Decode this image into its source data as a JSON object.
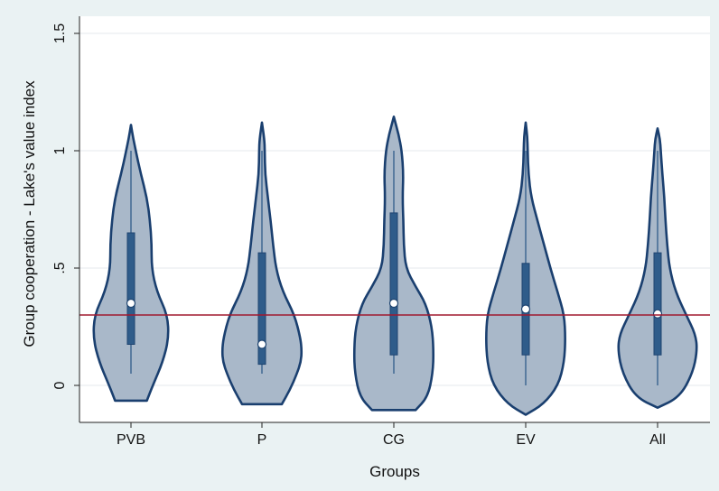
{
  "chart_data": {
    "type": "violin",
    "xlabel": "Groups",
    "ylabel": "Group cooperation - Lake's value index",
    "ylim": [
      -0.15,
      1.5
    ],
    "yticks": [
      {
        "v": 0,
        "label": "0"
      },
      {
        "v": 0.5,
        "label": ".5"
      },
      {
        "v": 1,
        "label": "1"
      },
      {
        "v": 1.5,
        "label": "1.5"
      }
    ],
    "reference_line": 0.3,
    "grid": true,
    "colors": {
      "fill": "#a9b8c9",
      "outline": "#1a3f6f",
      "box": "#2f5c8a",
      "refline": "#a0182f",
      "grid": "#e6eaee",
      "background": "#eaf2f3",
      "plot_bg": "#ffffff"
    },
    "categories": [
      {
        "label": "PVB",
        "min": 0.05,
        "q1": 0.175,
        "median": 0.35,
        "q3": 0.65,
        "max": 1.0,
        "violin_low": -0.065,
        "violin_high": 1.11,
        "profile": [
          [
            -0.065,
            0.4
          ],
          [
            0.0,
            0.55
          ],
          [
            0.1,
            0.8
          ],
          [
            0.2,
            0.95
          ],
          [
            0.3,
            0.92
          ],
          [
            0.4,
            0.65
          ],
          [
            0.5,
            0.52
          ],
          [
            0.6,
            0.52
          ],
          [
            0.7,
            0.48
          ],
          [
            0.8,
            0.4
          ],
          [
            0.9,
            0.25
          ],
          [
            1.0,
            0.12
          ],
          [
            1.05,
            0.06
          ],
          [
            1.11,
            0.0
          ]
        ]
      },
      {
        "label": "P",
        "min": 0.05,
        "q1": 0.09,
        "median": 0.175,
        "q3": 0.565,
        "max": 1.0,
        "violin_low": -0.08,
        "violin_high": 1.12,
        "profile": [
          [
            -0.08,
            0.5
          ],
          [
            -0.02,
            0.7
          ],
          [
            0.05,
            0.88
          ],
          [
            0.1,
            0.98
          ],
          [
            0.15,
            1.0
          ],
          [
            0.2,
            0.97
          ],
          [
            0.3,
            0.82
          ],
          [
            0.4,
            0.52
          ],
          [
            0.5,
            0.35
          ],
          [
            0.6,
            0.28
          ],
          [
            0.7,
            0.22
          ],
          [
            0.8,
            0.15
          ],
          [
            0.9,
            0.08
          ],
          [
            1.0,
            0.07
          ],
          [
            1.05,
            0.06
          ],
          [
            1.12,
            0.0
          ]
        ]
      },
      {
        "label": "CG",
        "min": 0.05,
        "q1": 0.13,
        "median": 0.35,
        "q3": 0.735,
        "max": 1.0,
        "violin_low": -0.105,
        "violin_high": 1.145,
        "profile": [
          [
            -0.105,
            0.55
          ],
          [
            -0.05,
            0.85
          ],
          [
            0.05,
            0.98
          ],
          [
            0.15,
            1.0
          ],
          [
            0.25,
            0.96
          ],
          [
            0.35,
            0.8
          ],
          [
            0.42,
            0.55
          ],
          [
            0.5,
            0.3
          ],
          [
            0.6,
            0.25
          ],
          [
            0.7,
            0.24
          ],
          [
            0.8,
            0.22
          ],
          [
            0.9,
            0.24
          ],
          [
            1.0,
            0.2
          ],
          [
            1.07,
            0.12
          ],
          [
            1.145,
            0.0
          ]
        ]
      },
      {
        "label": "EV",
        "min": 0.0,
        "q1": 0.13,
        "median": 0.325,
        "q3": 0.52,
        "max": 1.0,
        "violin_low": -0.125,
        "violin_high": 1.12,
        "profile": [
          [
            -0.125,
            0.0
          ],
          [
            -0.08,
            0.45
          ],
          [
            0.0,
            0.82
          ],
          [
            0.1,
            0.97
          ],
          [
            0.2,
            1.0
          ],
          [
            0.3,
            0.97
          ],
          [
            0.4,
            0.8
          ],
          [
            0.5,
            0.62
          ],
          [
            0.6,
            0.46
          ],
          [
            0.7,
            0.3
          ],
          [
            0.8,
            0.14
          ],
          [
            0.9,
            0.07
          ],
          [
            1.0,
            0.05
          ],
          [
            1.06,
            0.04
          ],
          [
            1.12,
            0.0
          ]
        ]
      },
      {
        "label": "All",
        "min": 0.0,
        "q1": 0.13,
        "median": 0.305,
        "q3": 0.565,
        "max": 1.0,
        "violin_low": -0.095,
        "violin_high": 1.095,
        "profile": [
          [
            -0.095,
            0.0
          ],
          [
            -0.05,
            0.55
          ],
          [
            0.05,
            0.88
          ],
          [
            0.15,
            1.0
          ],
          [
            0.22,
            0.95
          ],
          [
            0.3,
            0.72
          ],
          [
            0.4,
            0.45
          ],
          [
            0.5,
            0.3
          ],
          [
            0.6,
            0.24
          ],
          [
            0.7,
            0.2
          ],
          [
            0.8,
            0.17
          ],
          [
            0.9,
            0.12
          ],
          [
            1.0,
            0.08
          ],
          [
            1.05,
            0.06
          ],
          [
            1.095,
            0.0
          ]
        ]
      }
    ]
  }
}
